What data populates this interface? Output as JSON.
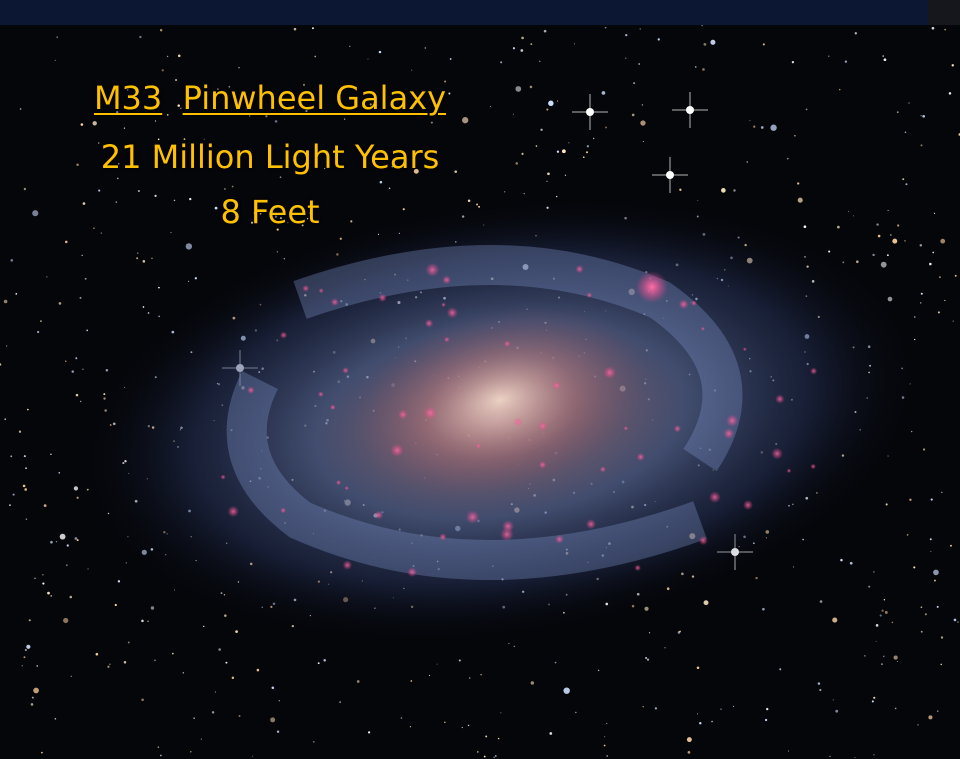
{
  "title": {
    "name": "M33",
    "subtitle": "Pinwheel Galaxy"
  },
  "lines": [
    "21 Million Light Years",
    "8 Feet"
  ]
}
